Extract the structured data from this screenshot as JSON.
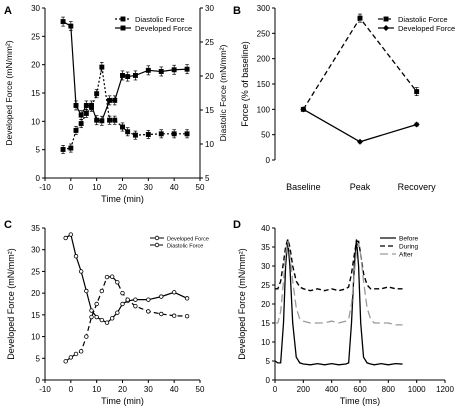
{
  "chart_data": [
    {
      "panel_label": "A",
      "type": "line",
      "xlabel": "Time (min)",
      "ylabel": "Developed Force (mN/mm²)",
      "y2label": "Diastolic Force (mN/mm²)",
      "xlim": [
        -10,
        50
      ],
      "xticks": [
        -10,
        0,
        10,
        20,
        30,
        40,
        50
      ],
      "ylim": [
        0,
        30
      ],
      "yticks": [
        0,
        5,
        10,
        15,
        20,
        25,
        30
      ],
      "y2lim": [
        5,
        30
      ],
      "y2ticks": [
        5,
        10,
        15,
        20,
        25,
        30
      ],
      "grid": false,
      "legend_position": "top-right",
      "series": [
        {
          "name": "Diastolic Force",
          "axis": "right",
          "style": "dotted",
          "marker": "square",
          "x": [
            -3,
            0,
            2,
            4,
            6,
            8,
            10,
            12,
            15,
            17,
            20,
            22,
            25,
            30,
            35,
            40,
            45
          ],
          "y": [
            9.2,
            9.4,
            12.0,
            13.0,
            14.5,
            15.4,
            17.4,
            21.3,
            13.5,
            13.5,
            12.5,
            11.8,
            11.3,
            11.4,
            11.5,
            11.5,
            11.5
          ],
          "err": [
            0.6,
            0.6,
            0.6,
            0.6,
            0.6,
            0.6,
            0.6,
            0.7,
            0.6,
            0.6,
            0.6,
            0.6,
            0.6,
            0.6,
            0.6,
            0.6,
            0.6
          ]
        },
        {
          "name": "Developed Force",
          "axis": "left",
          "style": "solid",
          "marker": "square",
          "x": [
            -3,
            0,
            2,
            4,
            6,
            8,
            10,
            12,
            15,
            17,
            20,
            22,
            25,
            30,
            35,
            40,
            45
          ],
          "y": [
            27.6,
            26.8,
            12.8,
            11.1,
            12.8,
            12.8,
            10.2,
            10.1,
            13.7,
            13.7,
            18.1,
            17.9,
            18.1,
            19.0,
            18.8,
            19.1,
            19.2
          ],
          "err": [
            0.8,
            0.8,
            0.8,
            0.8,
            0.8,
            0.8,
            0.8,
            0.8,
            0.8,
            0.8,
            0.8,
            0.8,
            0.8,
            0.8,
            0.8,
            0.8,
            0.8
          ]
        }
      ]
    },
    {
      "panel_label": "B",
      "type": "line",
      "xlabel": "",
      "ylabel": "Force (% of baseline)",
      "categories": [
        "Baseline",
        "Peak",
        "Recovery"
      ],
      "ylim": [
        0,
        300
      ],
      "yticks": [
        0,
        50,
        100,
        150,
        200,
        250,
        300
      ],
      "grid": false,
      "legend_position": "top-right",
      "series": [
        {
          "name": "Diastolic Force",
          "style": "dashed",
          "marker": "square",
          "values": [
            100,
            280,
            135
          ],
          "err": [
            0,
            8,
            8
          ]
        },
        {
          "name": "Developed Force",
          "style": "solid",
          "marker": "diamond",
          "values": [
            100,
            36,
            70
          ],
          "err": [
            0,
            2,
            3
          ]
        }
      ]
    },
    {
      "panel_label": "C",
      "type": "line",
      "xlabel": "Time (min)",
      "ylabel": "Developed Force (mN/mm²)",
      "xlim": [
        -10,
        50
      ],
      "xticks": [
        -10,
        0,
        10,
        20,
        30,
        40,
        50
      ],
      "ylim": [
        0,
        35
      ],
      "yticks": [
        0,
        5,
        10,
        15,
        20,
        25,
        30,
        35
      ],
      "grid": false,
      "legend_position": "top-right",
      "series": [
        {
          "name": "Developed Force",
          "style": "solid",
          "marker": "circle",
          "x": [
            -2,
            0,
            2,
            4,
            6,
            8,
            10,
            12,
            14,
            16,
            18,
            20,
            22,
            25,
            30,
            35,
            40,
            45
          ],
          "y": [
            32.7,
            33.5,
            28.5,
            25,
            20.5,
            16,
            14.5,
            13.8,
            13.2,
            14.2,
            15.5,
            17.5,
            18.2,
            18.5,
            18.5,
            19.2,
            20.2,
            18.8
          ]
        },
        {
          "name": "Diastolic Force",
          "style": "dashed",
          "marker": "circle",
          "x": [
            -2,
            0,
            2,
            4,
            6,
            8,
            10,
            12,
            14,
            16,
            18,
            20,
            22,
            25,
            30,
            35,
            40,
            45
          ],
          "y": [
            4.3,
            5.2,
            6.0,
            6.6,
            10.0,
            14.5,
            17.5,
            20.5,
            23.7,
            23.8,
            22.5,
            20.0,
            18.5,
            17.0,
            15.8,
            15.2,
            14.8,
            14.7
          ]
        }
      ]
    },
    {
      "panel_label": "D",
      "type": "line",
      "xlabel": "Time (ms)",
      "ylabel": "Developed Force (mN/mm²)",
      "xlim": [
        0,
        1200
      ],
      "xticks": [
        0,
        200,
        400,
        600,
        800,
        1000,
        1200
      ],
      "ylim": [
        0,
        40
      ],
      "yticks": [
        0,
        5,
        10,
        15,
        20,
        25,
        30,
        35,
        40
      ],
      "grid": false,
      "legend_position": "top-right",
      "series": [
        {
          "name": "Before",
          "style": "solid",
          "x": [
            0,
            20,
            40,
            60,
            75,
            90,
            105,
            125,
            150,
            175,
            200,
            250,
            300,
            350,
            400,
            450,
            500,
            520,
            540,
            560,
            575,
            590,
            605,
            625,
            650,
            675,
            700,
            750,
            800,
            850,
            900
          ],
          "y": [
            5,
            4.5,
            4.5,
            15,
            30,
            37,
            30,
            15,
            6,
            4.5,
            4.2,
            4.0,
            4.3,
            4.0,
            4.3,
            4.0,
            4.2,
            4.5,
            15,
            30,
            37,
            30,
            15,
            6,
            4.5,
            4.2,
            4.0,
            4.3,
            4.0,
            4.3,
            4.2
          ]
        },
        {
          "name": "During",
          "style": "dashed",
          "x": [
            0,
            20,
            40,
            60,
            75,
            90,
            105,
            125,
            150,
            175,
            200,
            250,
            300,
            350,
            400,
            450,
            500,
            520,
            540,
            560,
            575,
            590,
            605,
            625,
            650,
            675,
            700,
            750,
            800,
            850,
            900
          ],
          "y": [
            24,
            24,
            26,
            31,
            35,
            37,
            35,
            30,
            26,
            24.5,
            24,
            23.5,
            24,
            23.5,
            24,
            23.5,
            24,
            24.5,
            28,
            33,
            36.5,
            36.5,
            33,
            28,
            25,
            24,
            24,
            24,
            24.5,
            24,
            24
          ]
        },
        {
          "name": "After",
          "style": "long-dash",
          "x": [
            0,
            20,
            40,
            60,
            75,
            90,
            105,
            125,
            150,
            175,
            200,
            250,
            300,
            350,
            400,
            450,
            500,
            520,
            540,
            560,
            575,
            590,
            605,
            625,
            650,
            675,
            700,
            750,
            800,
            850,
            900
          ],
          "y": [
            15,
            15,
            18,
            26,
            33,
            36.5,
            33,
            26,
            19,
            16,
            15.5,
            15,
            15,
            15,
            15.5,
            15,
            15.5,
            16,
            20,
            28,
            34,
            36,
            33,
            26,
            19,
            16,
            15,
            15,
            15,
            14.5,
            14.5
          ]
        }
      ]
    }
  ]
}
